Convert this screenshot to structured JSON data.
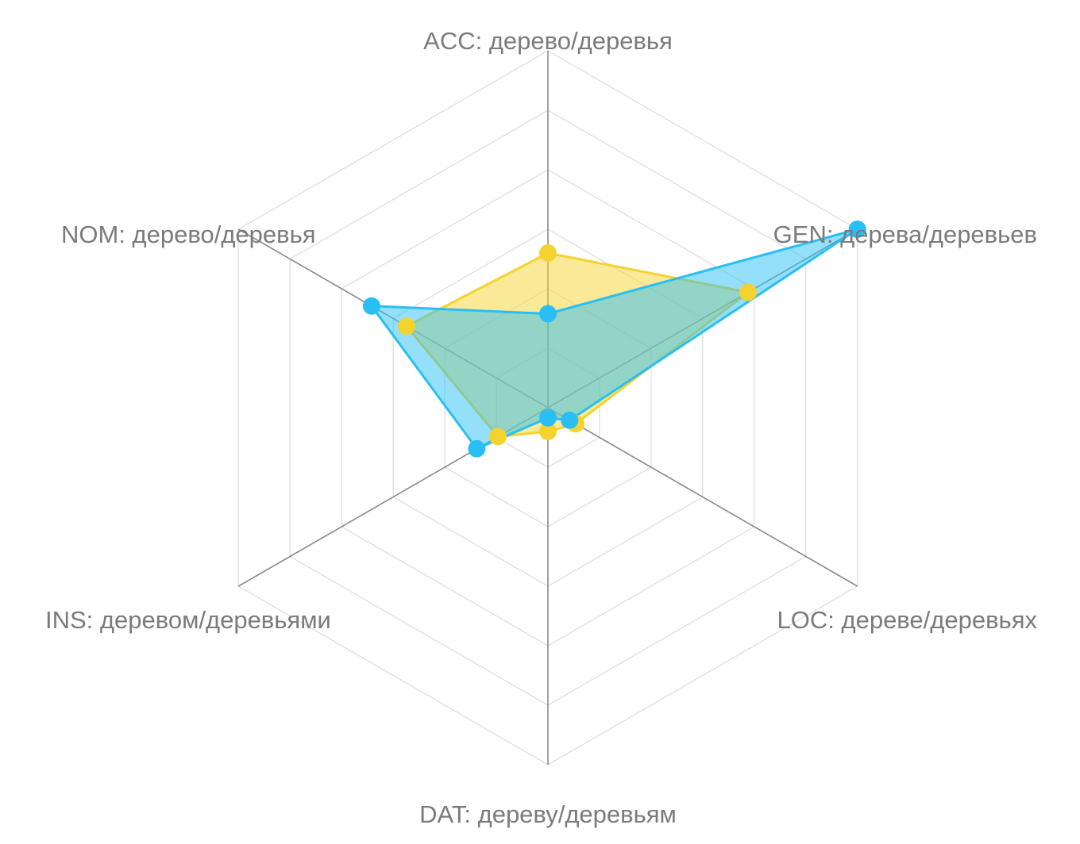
{
  "chart_data": {
    "type": "radar",
    "axes": [
      "ACC: дерево/деревья",
      "GEN: дерева/деревьев",
      "LOC: дереве/деревьях",
      "DAT: дереву/деревьям",
      "INS: деревом/деревьями",
      "NOM: дерево/деревья"
    ],
    "range": [
      0,
      6
    ],
    "rings": 6,
    "grid": true,
    "series": [
      {
        "color": "#f5d32f",
        "fill": "rgba(245, 211, 47, 0.5)",
        "values": [
          2.6,
          3.88,
          0.54,
          0.4,
          0.97,
          2.74
        ]
      },
      {
        "color": "#29bff5",
        "fill": "rgba(41, 191, 245, 0.5)",
        "values": [
          1.58,
          6.0,
          0.42,
          0.17,
          1.38,
          3.42
        ]
      }
    ]
  }
}
